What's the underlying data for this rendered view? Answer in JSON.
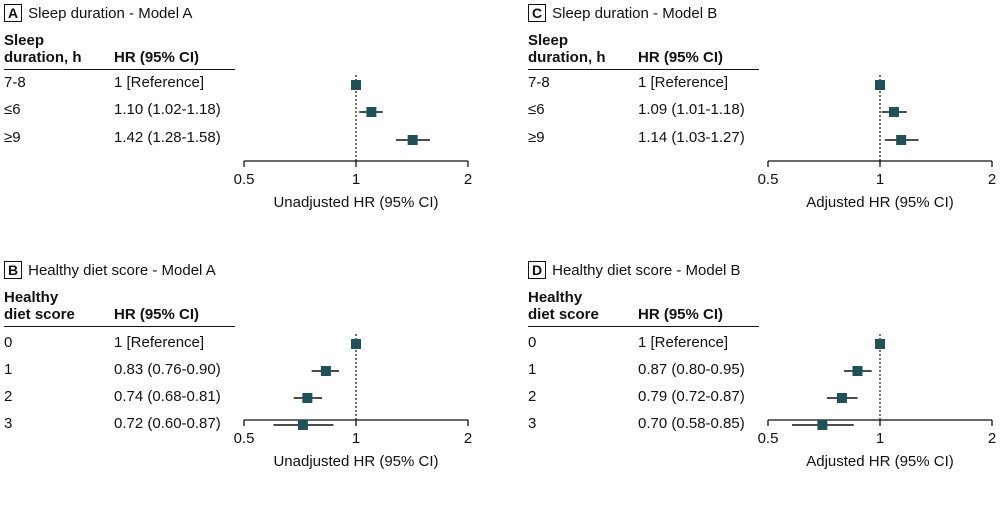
{
  "colors": {
    "marker": "#1f5257",
    "line": "#111111"
  },
  "chart_data": [
    {
      "type": "forest",
      "letter": "A",
      "title": "Sleep duration - Model A",
      "var_header": [
        "Sleep",
        "duration, h"
      ],
      "hr_header": "HR (95% CI)",
      "xlabel": "Unadjusted HR (95% CI)",
      "xscale": "log",
      "xlim": [
        0.5,
        2
      ],
      "xticks": [
        "0.5",
        "1",
        "2"
      ],
      "rows": [
        {
          "label": "7-8",
          "text": "1 [Reference]",
          "hr": 1,
          "lo": 1,
          "hi": 1
        },
        {
          "label": "≤6",
          "text": "1.10 (1.02-1.18)",
          "hr": 1.1,
          "lo": 1.02,
          "hi": 1.18
        },
        {
          "label": "≥9",
          "text": "1.42 (1.28-1.58)",
          "hr": 1.42,
          "lo": 1.28,
          "hi": 1.58
        }
      ]
    },
    {
      "type": "forest",
      "letter": "C",
      "title": "Sleep duration - Model B",
      "var_header": [
        "Sleep",
        "duration, h"
      ],
      "hr_header": "HR (95% CI)",
      "xlabel": "Adjusted HR (95% CI)",
      "xscale": "log",
      "xlim": [
        0.5,
        2
      ],
      "xticks": [
        "0.5",
        "1",
        "2"
      ],
      "rows": [
        {
          "label": "7-8",
          "text": "1 [Reference]",
          "hr": 1,
          "lo": 1,
          "hi": 1
        },
        {
          "label": "≤6",
          "text": "1.09 (1.01-1.18)",
          "hr": 1.09,
          "lo": 1.01,
          "hi": 1.18
        },
        {
          "label": "≥9",
          "text": "1.14 (1.03-1.27)",
          "hr": 1.14,
          "lo": 1.03,
          "hi": 1.27
        }
      ]
    },
    {
      "type": "forest",
      "letter": "B",
      "title": "Healthy diet score - Model A",
      "var_header": [
        "Healthy",
        "diet score"
      ],
      "hr_header": "HR (95% CI)",
      "xlabel": "Unadjusted HR (95% CI)",
      "xscale": "log",
      "xlim": [
        0.5,
        2
      ],
      "xticks": [
        "0.5",
        "1",
        "2"
      ],
      "rows": [
        {
          "label": "0",
          "text": "1 [Reference]",
          "hr": 1,
          "lo": 1,
          "hi": 1
        },
        {
          "label": "1",
          "text": "0.83 (0.76-0.90)",
          "hr": 0.83,
          "lo": 0.76,
          "hi": 0.9
        },
        {
          "label": "2",
          "text": "0.74 (0.68-0.81)",
          "hr": 0.74,
          "lo": 0.68,
          "hi": 0.81
        },
        {
          "label": "3",
          "text": "0.72 (0.60-0.87)",
          "hr": 0.72,
          "lo": 0.6,
          "hi": 0.87
        }
      ]
    },
    {
      "type": "forest",
      "letter": "D",
      "title": "Healthy diet score - Model B",
      "var_header": [
        "Healthy",
        "diet score"
      ],
      "hr_header": "HR (95% CI)",
      "xlabel": "Adjusted HR (95% CI)",
      "xscale": "log",
      "xlim": [
        0.5,
        2
      ],
      "xticks": [
        "0.5",
        "1",
        "2"
      ],
      "rows": [
        {
          "label": "0",
          "text": "1 [Reference]",
          "hr": 1,
          "lo": 1,
          "hi": 1
        },
        {
          "label": "1",
          "text": "0.87 (0.80-0.95)",
          "hr": 0.87,
          "lo": 0.8,
          "hi": 0.95
        },
        {
          "label": "2",
          "text": "0.79 (0.72-0.87)",
          "hr": 0.79,
          "lo": 0.72,
          "hi": 0.87
        },
        {
          "label": "3",
          "text": "0.70 (0.58-0.85)",
          "hr": 0.7,
          "lo": 0.58,
          "hi": 0.85
        }
      ]
    }
  ]
}
